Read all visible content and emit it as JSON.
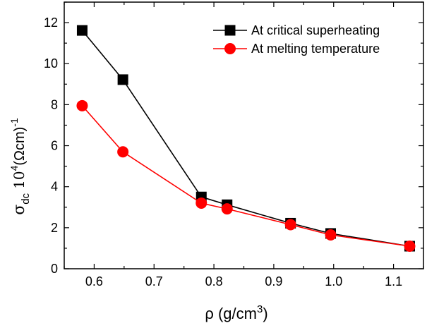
{
  "chart_data": {
    "type": "line",
    "xlabel": {
      "base": "ρ (g/cm",
      "sup": "3",
      "end": ")"
    },
    "ylabel": {
      "sigma": "σ",
      "sub": "dc",
      "ten": "10",
      "exp": "4",
      "unit": "(Ωcm)",
      "unit_exp": "-1"
    },
    "xlim": [
      0.55,
      1.15
    ],
    "ylim": [
      0,
      13
    ],
    "xticks": [
      0.6,
      0.7,
      0.8,
      0.9,
      1.0,
      1.1
    ],
    "xtick_labels": [
      "0.6",
      "0.7",
      "0.8",
      "0.9",
      "1.0",
      "1.1"
    ],
    "yticks": [
      0,
      2,
      4,
      6,
      8,
      10,
      12
    ],
    "ytick_labels": [
      "0",
      "2",
      "4",
      "6",
      "8",
      "10",
      "12"
    ],
    "grid": false,
    "legend_position": "top-right",
    "series": [
      {
        "name": "At critical superheating",
        "color": "#000000",
        "marker": "square",
        "x": [
          0.58,
          0.648,
          0.779,
          0.822,
          0.928,
          0.995,
          1.127
        ],
        "y": [
          11.62,
          9.22,
          3.5,
          3.12,
          2.22,
          1.72,
          1.1
        ]
      },
      {
        "name": "At melting temperature",
        "color": "#ff0000",
        "marker": "circle",
        "x": [
          0.58,
          0.648,
          0.779,
          0.822,
          0.928,
          0.995,
          1.127
        ],
        "y": [
          7.95,
          5.7,
          3.2,
          2.92,
          2.15,
          1.65,
          1.1
        ]
      }
    ]
  }
}
